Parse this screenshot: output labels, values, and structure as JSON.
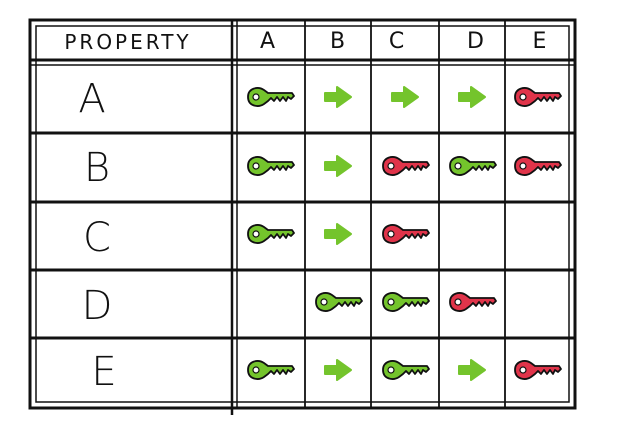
{
  "header": {
    "property_label": "PROPERTY",
    "columns": [
      "A",
      "B",
      "C",
      "D",
      "E"
    ]
  },
  "rows": [
    {
      "label": "A",
      "cells": [
        "green-key",
        "green-arrow",
        "green-arrow",
        "green-arrow",
        "red-key"
      ]
    },
    {
      "label": "B",
      "cells": [
        "green-key",
        "green-arrow",
        "red-key",
        "green-key",
        "red-key"
      ]
    },
    {
      "label": "C",
      "cells": [
        "green-key",
        "green-arrow",
        "red-key",
        "",
        ""
      ]
    },
    {
      "label": "D",
      "cells": [
        "",
        "green-key",
        "green-key",
        "red-key",
        ""
      ]
    },
    {
      "label": "E",
      "cells": [
        "green-key",
        "green-arrow",
        "green-key",
        "green-arrow",
        "red-key"
      ]
    }
  ],
  "colors": {
    "green": "#74c42c",
    "red": "#e0344a",
    "ink": "#111111"
  },
  "icons": {
    "green-key": "key-icon",
    "red-key": "key-icon",
    "green-arrow": "arrow-right-icon"
  }
}
